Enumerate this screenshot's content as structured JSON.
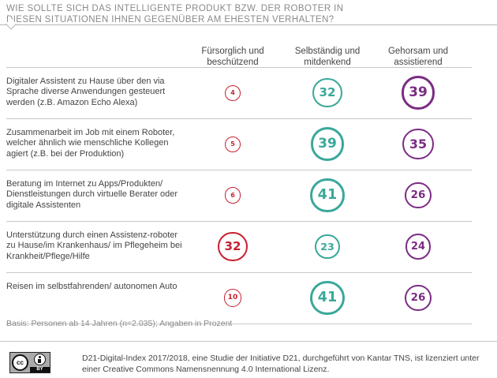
{
  "header": {
    "title": "Wie sollte sich das intelligente Produkt bzw. der Roboter in diesen Situationen Ihnen gegenüber am ehesten verhalten?"
  },
  "colors": {
    "red": "#c8202f",
    "teal": "#3aa89a",
    "purple": "#7b2c84"
  },
  "chart_data": {
    "type": "table",
    "unit": "Prozent",
    "columns": [
      {
        "label": "Fürsorglich und beschützend",
        "color": "#c8202f"
      },
      {
        "label": "Selbständig und mitdenkend",
        "color": "#3aa89a"
      },
      {
        "label": "Gehorsam und assistierend",
        "color": "#7b2c84"
      }
    ],
    "rows": [
      {
        "label": "Digitaler Assistent zu Hause über den via Sprache diverse Anwendungen gesteuert werden (z.B. Amazon Echo Alexa)",
        "values": [
          4,
          32,
          39
        ]
      },
      {
        "label": "Zusammenarbeit im Job mit einem Roboter, welcher ähnlich wie menschliche Kollegen agiert (z.B. bei der Produktion)",
        "values": [
          5,
          39,
          35
        ]
      },
      {
        "label": "Beratung im Internet zu Apps/Produkten/ Dienstleistungen durch virtuelle Berater oder digitale Assistenten",
        "values": [
          6,
          41,
          26
        ]
      },
      {
        "label": "Unterstützung durch einen Assistenz-roboter zu Hause/im Krankenhaus/ im Pflegeheim bei Krankheit/Pflege/Hilfe",
        "values": [
          32,
          23,
          24
        ]
      },
      {
        "label": "Reisen im selbstfahrenden/ autonomen Auto",
        "values": [
          10,
          41,
          26
        ]
      }
    ]
  },
  "basis": "Basis: Personen ab 14 Jahren (n=2.035); Angaben in Prozent",
  "footer": {
    "cc_badge": {
      "cc": "cc",
      "by": "BY"
    },
    "license_text": "D21-Digital-Index 2017/2018, eine Studie der Initiative D21, durchgeführt von Kantar TNS, ist lizenziert unter einer Creative Commons Namensnennung 4.0 International Lizenz."
  }
}
